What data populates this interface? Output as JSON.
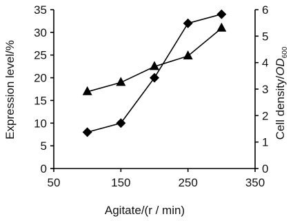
{
  "chart_data": {
    "type": "line",
    "xlabel": "Agitate/(r / min)",
    "ylabel": "Expression level/%",
    "y2label_main": "Cell density/",
    "y2label_italic": "OD",
    "y2label_sub": "600",
    "xlim": [
      50,
      350
    ],
    "ylim": [
      0,
      35
    ],
    "y2lim": [
      0,
      6
    ],
    "x_ticks": [
      50,
      150,
      250,
      350
    ],
    "y_ticks": [
      0,
      5,
      10,
      15,
      20,
      25,
      30,
      35
    ],
    "y2_ticks": [
      0,
      1,
      2,
      3,
      4,
      5,
      6
    ],
    "grid": false,
    "series": [
      {
        "axis": "left",
        "marker": "diamond",
        "x": [
          100,
          150,
          200,
          250,
          300
        ],
        "values": [
          8,
          10,
          20,
          32,
          34
        ]
      },
      {
        "axis": "right",
        "marker": "triangle",
        "x": [
          100,
          150,
          200,
          250,
          300
        ],
        "values": [
          2.9,
          3.25,
          3.85,
          4.25,
          5.3
        ]
      }
    ]
  }
}
